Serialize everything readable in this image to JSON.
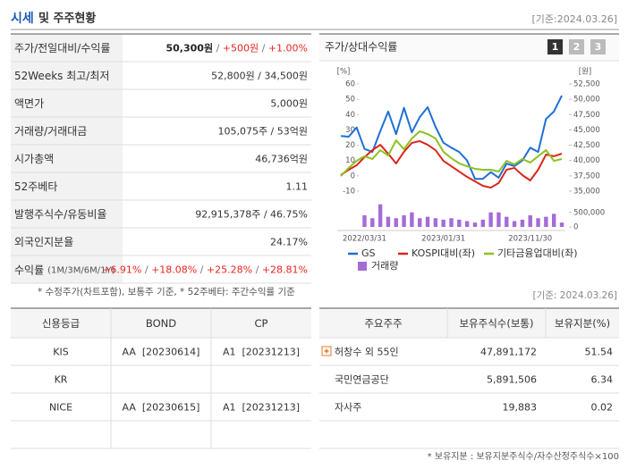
{
  "header": {
    "title_highlight": "시세",
    "title_rest": "및 주주현황",
    "date": "[기준:2024.03.26]"
  },
  "quote_table": {
    "separator": " / ",
    "rows": [
      {
        "label": "주가/전일대비/수익률",
        "parts": [
          "50,300원",
          "+500원",
          "+1.00%"
        ],
        "part_colors": [
          "#222222",
          "#e8251f",
          "#e8251f"
        ]
      },
      {
        "label": "52Weeks 최고/최저",
        "value": "52,800원 / 34,500원"
      },
      {
        "label": "액면가",
        "value": "5,000원"
      },
      {
        "label": "거래량/거래대금",
        "value": "105,075주 / 53억원"
      },
      {
        "label": "시가총액",
        "value": "46,736억원"
      },
      {
        "label": "52주베타",
        "value": "1.11"
      },
      {
        "label": "발행주식수/유동비율",
        "value": "92,915,378주 / 46.75%"
      },
      {
        "label": "외국인지분율",
        "value": "24.17%"
      },
      {
        "label": "수익률",
        "label_note": "(1M/3M/6M/1Y)",
        "parts": [
          "+6.91%",
          "+18.08%",
          "+25.28%",
          "+28.81%"
        ],
        "part_colors": [
          "#e8251f",
          "#e8251f",
          "#e8251f",
          "#e8251f"
        ]
      }
    ],
    "note": "* 수정주가(차트포함), 보통주 기준, * 52주베타: 주간수익률 기준"
  },
  "chart_data": {
    "type": "line",
    "title": "주가/상대수익률",
    "buttons": [
      "1",
      "2",
      "3"
    ],
    "ylabel": "[%]",
    "y2label": "[원]",
    "categories": [
      null,
      null,
      null,
      "2022/03/31",
      null,
      null,
      null,
      null,
      null,
      null,
      null,
      null,
      null,
      "2023/01/31",
      null,
      null,
      null,
      null,
      null,
      null,
      null,
      null,
      null,
      null,
      "2023/11/30",
      null,
      null,
      null,
      null
    ],
    "ylim": [
      -10,
      60
    ],
    "yticks": [
      60,
      50,
      40,
      30,
      20,
      10,
      0,
      -10
    ],
    "y2lim": [
      35000,
      52500
    ],
    "y2ticks": [
      {
        "value": 52500,
        "label": "52,500"
      },
      {
        "value": 50000,
        "label": "50,000"
      },
      {
        "value": 47500,
        "label": "47,500"
      },
      {
        "value": 45000,
        "label": "45,000"
      },
      {
        "value": 42500,
        "label": "42,500"
      },
      {
        "value": 40000,
        "label": "40,000"
      },
      {
        "value": 37500,
        "label": "37,500"
      },
      {
        "value": 35000,
        "label": "35,000"
      }
    ],
    "series": [
      {
        "name": "GS",
        "color": "#1f6fd6",
        "axis": "y2",
        "values": [
          44000,
          43900,
          45400,
          41900,
          41400,
          44800,
          48000,
          44300,
          48600,
          44600,
          47100,
          48700,
          45500,
          42900,
          42100,
          41400,
          40000,
          37000,
          37000,
          38100,
          37200,
          39500,
          39100,
          40000,
          42100,
          41400,
          46800,
          48000,
          50600
        ]
      },
      {
        "name": "KOSPI대비(좌)",
        "color": "#d9261c",
        "values": [
          0.5,
          4,
          6.9,
          12.2,
          16.8,
          20.3,
          14.5,
          8.1,
          15.7,
          21.5,
          22.7,
          20.3,
          16.8,
          9.8,
          6.3,
          2.8,
          -0.7,
          -3.6,
          -6.5,
          -7.7,
          -4.7,
          4,
          5.2,
          0.5,
          -3,
          4,
          13.9,
          12.8,
          14.5
        ]
      },
      {
        "name": "기타금융업대비(좌)",
        "color": "#8cc21f",
        "values": [
          -0.1,
          5.2,
          9.8,
          12.8,
          11,
          16.8,
          13.3,
          23.2,
          17.4,
          24.4,
          29.1,
          27.3,
          24.4,
          15.7,
          11.6,
          8.1,
          6.3,
          4.6,
          4,
          4,
          2.8,
          9.8,
          7.5,
          11,
          8.7,
          12.8,
          16.8,
          9.8,
          11
        ]
      }
    ],
    "volume": {
      "name": "거래량",
      "color": "#a56bd6",
      "values": [
        null,
        null,
        null,
        400000,
        300000,
        780000,
        350000,
        300000,
        400000,
        500000,
        300000,
        350000,
        300000,
        250000,
        300000,
        250000,
        200000,
        150000,
        250000,
        500000,
        500000,
        350000,
        200000,
        250000,
        400000,
        300000,
        350000,
        450000,
        150000
      ],
      "ylim": [
        0,
        800000
      ],
      "yticks": [
        {
          "value": 500000,
          "label": "500,000"
        },
        0
      ]
    }
  },
  "credit_table": {
    "header": [
      "신용등급",
      "BOND",
      "CP"
    ],
    "rows": [
      [
        "KIS",
        "AA  [20230614]",
        "A1  [20231213]"
      ],
      [
        "KR"
      ],
      [
        "NICE",
        "AA  [20230615]",
        "A1  [20231213]"
      ]
    ],
    "date": "[기준: 2024.03.26]"
  },
  "holders_table": {
    "header": [
      "주요주주",
      "보유주식수(보통)",
      "보유지분(%)"
    ],
    "rows": [
      [
        "허창수 외 55인",
        "47,891,172",
        "51.54"
      ],
      [
        "국민연금공단",
        "5,891,506",
        "6.34"
      ],
      [
        "자사주",
        "19,883",
        "0.02"
      ]
    ],
    "note": "* 보유지분 : 보유지분주식수/자수산정주식수×100"
  }
}
